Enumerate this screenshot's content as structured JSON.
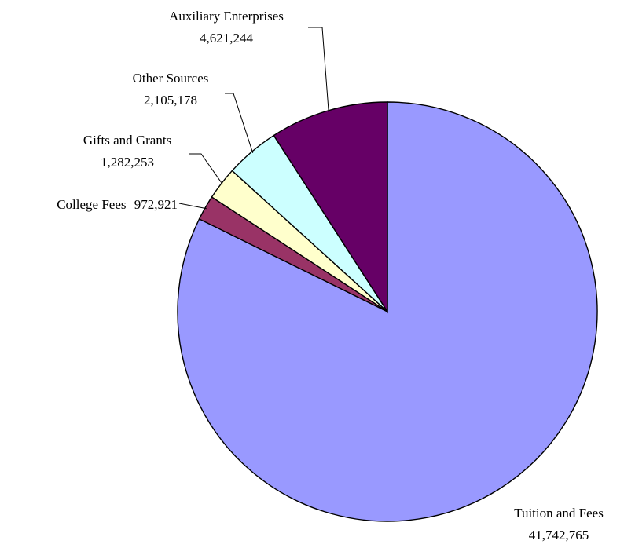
{
  "chart_data": {
    "type": "pie",
    "title": "",
    "start_angle_deg": 90,
    "direction": "clockwise",
    "slices": [
      {
        "label": "Tuition and Fees",
        "value": 41742765,
        "value_text": "41,742,765",
        "color": "#9999ff"
      },
      {
        "label": "College Fees",
        "value": 972921,
        "value_text": "972,921",
        "color": "#993366"
      },
      {
        "label": "Gifts and Grants",
        "value": 1282253,
        "value_text": "1,282,253",
        "color": "#ffffcc"
      },
      {
        "label": "Other Sources",
        "value": 2105178,
        "value_text": "2,105,178",
        "color": "#ccffff"
      },
      {
        "label": "Auxiliary Enterprises",
        "value": 4621244,
        "value_text": "4,621,244",
        "color": "#660066"
      }
    ]
  }
}
